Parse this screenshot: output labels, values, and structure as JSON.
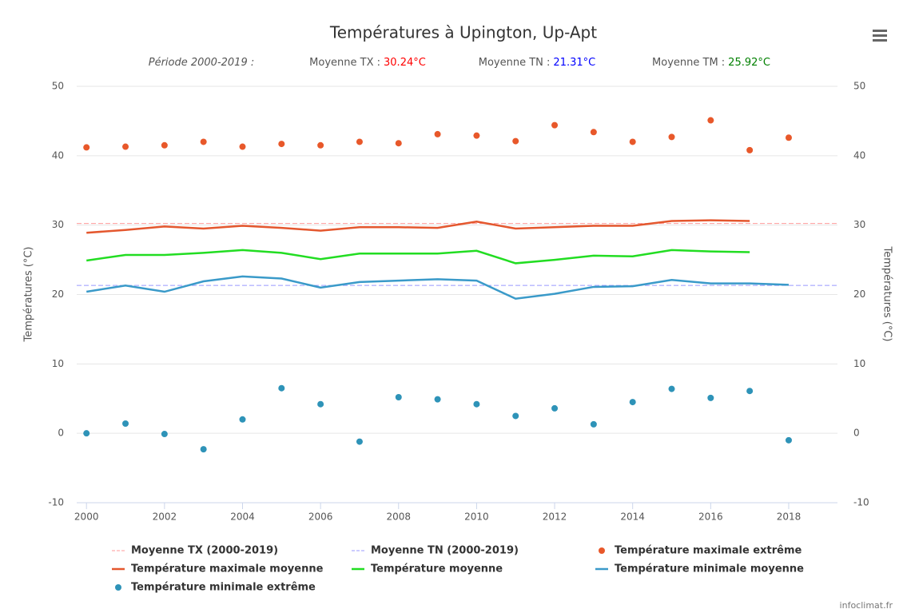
{
  "chart_data": {
    "type": "line",
    "title": "Températures à Upington, Up-Apt",
    "subtitle": [
      {
        "text": "Période 2000-2019 :"
      },
      {
        "text": "Moyenne TX :",
        "value": "30.24°C",
        "color": "#ff0000"
      },
      {
        "text": "Moyenne TN :",
        "value": "21.31°C",
        "color": "#0000ff"
      },
      {
        "text": "Moyenne TM :",
        "value": "25.92°C",
        "color": "#008000"
      }
    ],
    "y_label": "Températures (°C)",
    "y2_label": "Températures (°C)",
    "x": [
      2000,
      2001,
      2002,
      2003,
      2004,
      2005,
      2006,
      2007,
      2008,
      2009,
      2010,
      2011,
      2012,
      2013,
      2014,
      2015,
      2016,
      2017,
      2018
    ],
    "xlim": [
      1999.75,
      2019.25
    ],
    "xticks": [
      2000,
      2002,
      2004,
      2006,
      2008,
      2010,
      2012,
      2014,
      2016,
      2018
    ],
    "ylim": [
      -10,
      50
    ],
    "yticks": [
      -10,
      0,
      10,
      20,
      30,
      40,
      50
    ],
    "y2lim": [
      -10,
      50
    ],
    "y2ticks": [
      -10,
      0,
      10,
      20,
      30,
      40,
      50
    ],
    "grid": true,
    "series": [
      {
        "name": "Moyenne TX (2000-2019)",
        "kind": "reference",
        "color": "#ff9999",
        "value": 30.24
      },
      {
        "name": "Moyenne TN (2000-2019)",
        "kind": "reference",
        "color": "#9999ff",
        "value": 21.31
      },
      {
        "name": "Température maximale extrême",
        "kind": "scatter",
        "color": "#e8582a",
        "values": [
          41.2,
          41.3,
          41.5,
          42.0,
          41.3,
          41.7,
          41.5,
          42.0,
          41.8,
          43.1,
          42.9,
          42.1,
          44.4,
          43.4,
          42.0,
          42.7,
          45.1,
          40.8,
          42.6
        ]
      },
      {
        "name": "Température maximale moyenne",
        "kind": "line",
        "color": "#e4572e",
        "values": [
          28.9,
          29.3,
          29.8,
          29.5,
          29.9,
          29.6,
          29.2,
          29.7,
          29.7,
          29.6,
          30.5,
          29.5,
          29.7,
          29.9,
          29.9,
          30.6,
          30.7,
          30.6,
          null
        ]
      },
      {
        "name": "Température moyenne",
        "kind": "line",
        "color": "#22dd22",
        "values": [
          24.9,
          25.7,
          25.7,
          26.0,
          26.4,
          26.0,
          25.1,
          25.9,
          25.9,
          25.9,
          26.3,
          24.5,
          25.0,
          25.6,
          25.5,
          26.4,
          26.2,
          26.1,
          null
        ]
      },
      {
        "name": "Température minimale moyenne",
        "kind": "line",
        "color": "#3a9ac9",
        "values": [
          20.4,
          21.3,
          20.4,
          21.9,
          22.6,
          22.3,
          21.0,
          21.8,
          22.0,
          22.2,
          22.0,
          19.4,
          20.1,
          21.1,
          21.2,
          22.1,
          21.6,
          21.6,
          21.4
        ]
      },
      {
        "name": "Température minimale extrême",
        "kind": "scatter",
        "color": "#2e93b8",
        "values": [
          0.0,
          1.4,
          -0.1,
          -2.3,
          2.0,
          6.5,
          4.2,
          -1.2,
          5.2,
          4.9,
          4.2,
          2.5,
          3.6,
          1.3,
          4.5,
          6.4,
          5.1,
          6.1,
          -1.0
        ]
      }
    ],
    "credit": "infoclimat.fr"
  }
}
